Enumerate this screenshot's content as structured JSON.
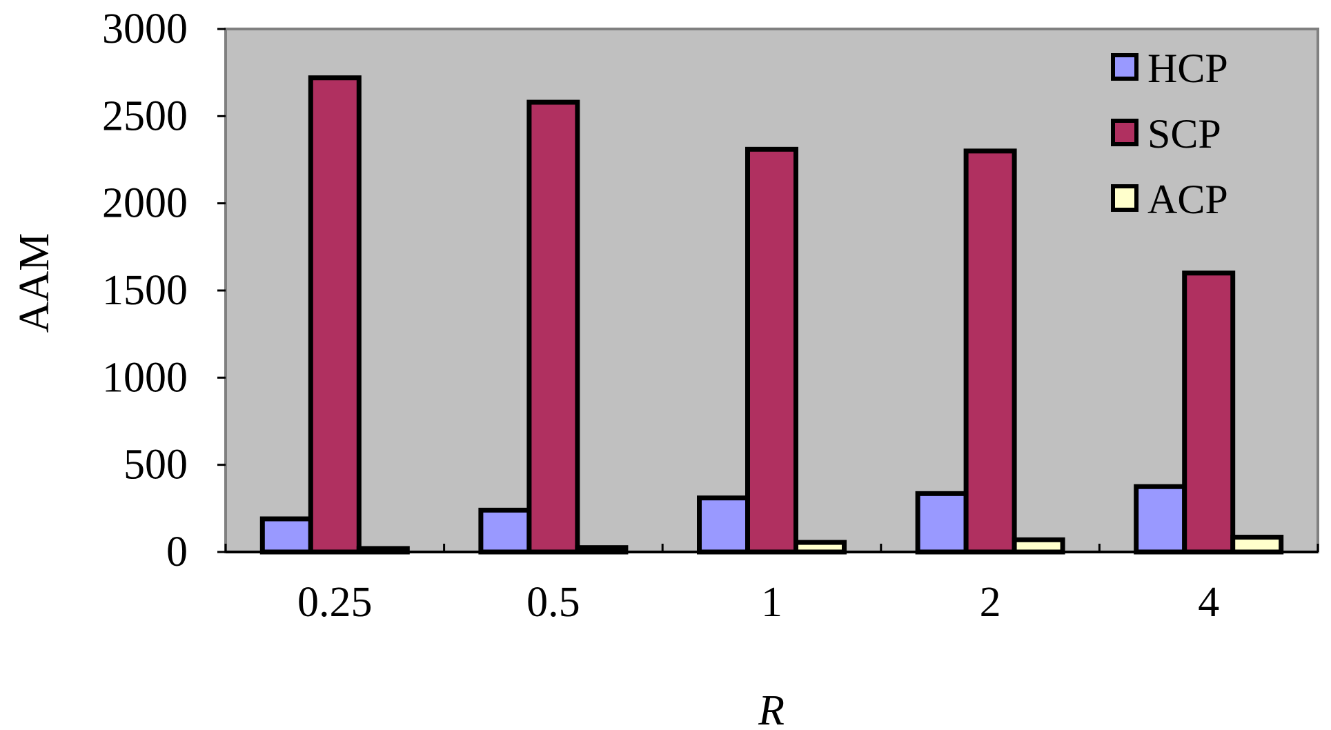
{
  "chart_data": {
    "type": "bar",
    "title": "",
    "xlabel": "R",
    "ylabel": "AAM",
    "categories": [
      "0.25",
      "0.5",
      "1",
      "2",
      "4"
    ],
    "ylim": [
      0,
      3000
    ],
    "yticks": [
      "0",
      "500",
      "1000",
      "1500",
      "2000",
      "2500",
      "3000"
    ],
    "grid": false,
    "legend_position": "top-right",
    "plot_background": "#c0c0c0",
    "series": [
      {
        "name": "HCP",
        "color": "#9999ff",
        "values": [
          190,
          240,
          310,
          335,
          375
        ]
      },
      {
        "name": "SCP",
        "color": "#b03060",
        "values": [
          2720,
          2580,
          2310,
          2300,
          1600
        ]
      },
      {
        "name": "ACP",
        "color": "#ffffcc",
        "values": [
          20,
          25,
          55,
          70,
          85
        ]
      }
    ]
  }
}
